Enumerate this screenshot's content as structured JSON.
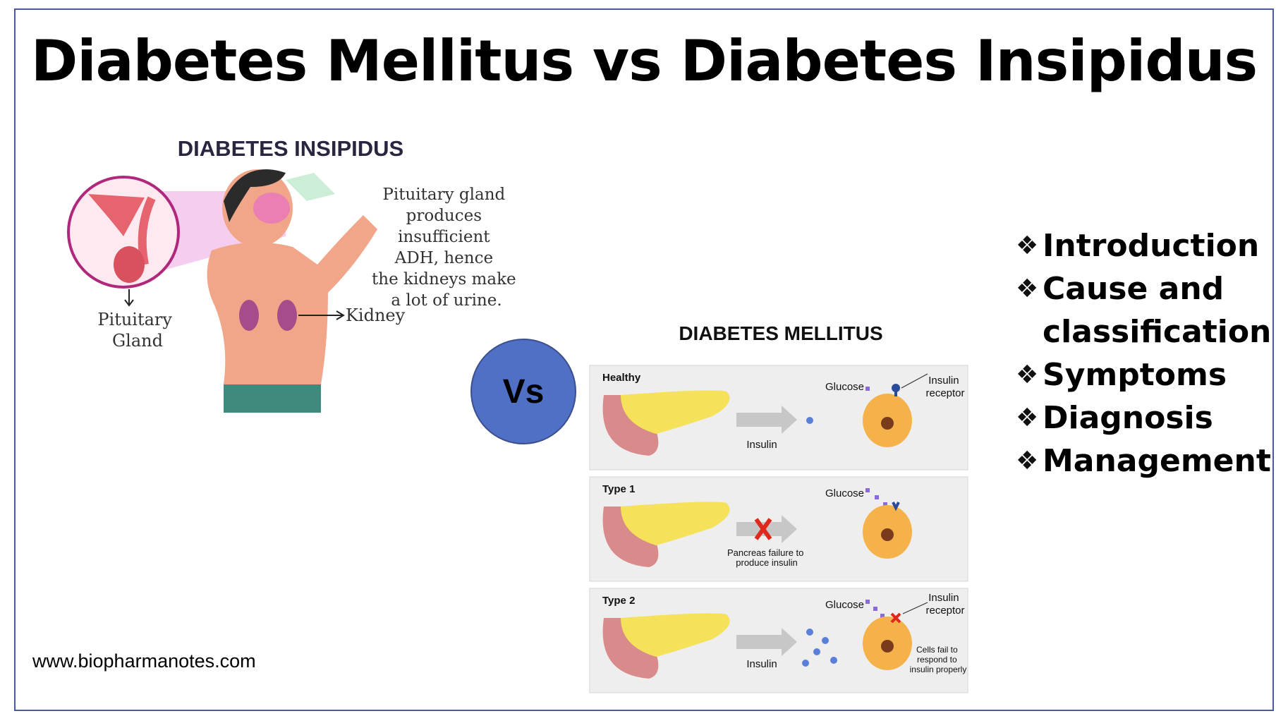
{
  "title": "Diabetes Mellitus vs Diabetes Insipidus",
  "website": "www.biopharmanotes.com",
  "vs_label": "Vs",
  "insipidus": {
    "heading": "DIABETES INSIPIDUS",
    "description": [
      "Pituitary gland",
      "produces",
      "insufficient",
      "ADH, hence",
      "the kidneys make",
      "a lot of  urine."
    ],
    "gland_label": [
      "Pituitary",
      "Gland"
    ],
    "kidney_label": "Kidney"
  },
  "mellitus": {
    "heading": "DIABETES MELLITUS",
    "panels": [
      {
        "type": "Healthy",
        "glucose": "Glucose",
        "receptor": [
          "Insulin",
          "receptor"
        ],
        "arrow_label": "Insulin"
      },
      {
        "type": "Type 1",
        "glucose": "Glucose",
        "failure": [
          "Pancreas failure to",
          "produce insulin"
        ]
      },
      {
        "type": "Type 2",
        "glucose": "Glucose",
        "receptor": [
          "Insulin",
          "receptor"
        ],
        "arrow_label": "Insulin",
        "cells_note": [
          "Cells fail to",
          "respond to",
          "insulin properly"
        ]
      }
    ]
  },
  "topics": [
    {
      "lines": [
        "Introduction"
      ]
    },
    {
      "lines": [
        "Cause and",
        "classification"
      ]
    },
    {
      "lines": [
        "Symptoms"
      ]
    },
    {
      "lines": [
        "Diagnosis"
      ]
    },
    {
      "lines": [
        "Management"
      ]
    }
  ],
  "icons": {
    "bullet": "diamond-bullet-icon",
    "cross": "red-x-icon"
  },
  "colors": {
    "border": "#4a5a9a",
    "vs_circle": "#4f70c4",
    "pancreas": "#f5e25a",
    "cell": "#f6b24a",
    "cross": "#e0281c"
  }
}
